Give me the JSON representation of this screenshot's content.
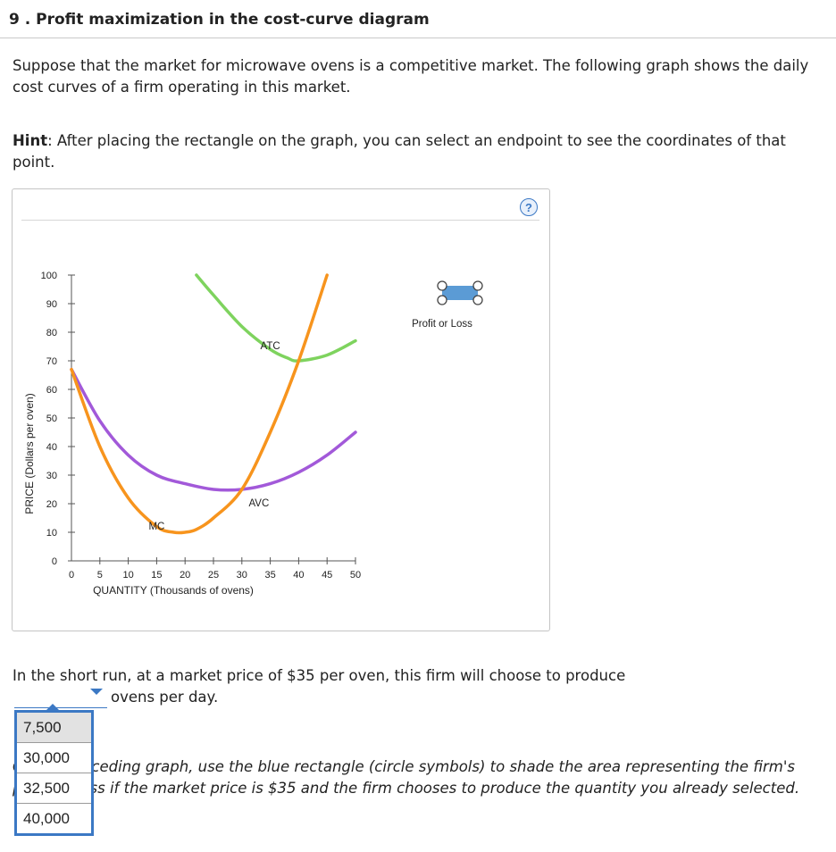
{
  "question": {
    "title": "9 . Profit maximization in the cost-curve diagram",
    "intro": "Suppose that the market for microwave ovens is a competitive market. The following graph shows the daily cost curves of a firm operating in this market.",
    "hint_label": "Hint",
    "hint_text": ": After placing the rectangle on the graph, you can select an endpoint to see the coordinates of that point.",
    "short_run_question": "In the short run, at a market price of $35 per oven, this firm will choose to produce",
    "answer_suffix": "ovens per day.",
    "instruction": "On the preceding graph, use the blue rectangle (circle symbols) to shade the area representing the firm's profit or loss if the market price is $35 and the firm chooses to produce the quantity you already selected."
  },
  "graph": {
    "help_icon": "?",
    "help_icon_name": "question-mark-icon",
    "palette_tool_label": "Profit or Loss",
    "palette_tool_icon": "rectangle-with-circle-handles-icon"
  },
  "dropdown": {
    "options": [
      "7,500",
      "30,000",
      "32,500",
      "40,000"
    ],
    "highlighted_index": 0
  },
  "chart_data": {
    "type": "line",
    "xlabel": "QUANTITY (Thousands of ovens)",
    "ylabel": "PRICE (Dollars per oven)",
    "xlim": [
      0,
      50
    ],
    "ylim": [
      0,
      100
    ],
    "x_ticks": [
      0,
      5,
      10,
      15,
      20,
      25,
      30,
      35,
      40,
      45,
      50
    ],
    "y_ticks": [
      0,
      10,
      20,
      30,
      40,
      50,
      60,
      70,
      80,
      90,
      100
    ],
    "grid": false,
    "series": [
      {
        "name": "MC",
        "color": "#f7941d",
        "label_point": [
          15,
          11
        ],
        "points": [
          [
            0,
            67
          ],
          [
            5,
            40
          ],
          [
            10,
            22
          ],
          [
            15,
            12
          ],
          [
            18,
            10
          ],
          [
            20,
            10
          ],
          [
            22,
            11
          ],
          [
            25,
            15
          ],
          [
            30,
            25
          ],
          [
            35,
            45
          ],
          [
            40,
            70
          ],
          [
            45,
            100
          ]
        ]
      },
      {
        "name": "AVC",
        "color": "#a259d9",
        "label_point": [
          33,
          19
        ],
        "points": [
          [
            0,
            67
          ],
          [
            5,
            49
          ],
          [
            10,
            37
          ],
          [
            15,
            30
          ],
          [
            20,
            27
          ],
          [
            25,
            25
          ],
          [
            30,
            25
          ],
          [
            35,
            27
          ],
          [
            40,
            31
          ],
          [
            45,
            37
          ],
          [
            50,
            45
          ]
        ]
      },
      {
        "name": "ATC",
        "color": "#7ed35e",
        "label_point": [
          35,
          74
        ],
        "points": [
          [
            22,
            100
          ],
          [
            25,
            93
          ],
          [
            30,
            82
          ],
          [
            35,
            74
          ],
          [
            38,
            71
          ],
          [
            40,
            70
          ],
          [
            45,
            72
          ],
          [
            50,
            77
          ]
        ]
      }
    ]
  }
}
